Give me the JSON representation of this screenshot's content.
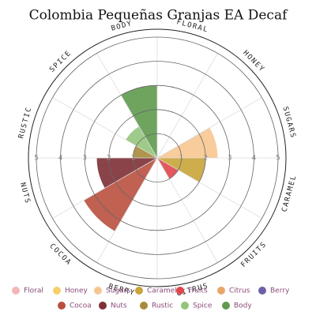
{
  "chart_data": {
    "type": "polar-area",
    "title": "Colombia Pequeñas Granjas EA Decaf",
    "categories": [
      "Floral",
      "Honey",
      "Sugars",
      "Caramel",
      "Fruits",
      "Citrus",
      "Berry",
      "Cocoa",
      "Nuts",
      "Rustic",
      "Spice",
      "Body"
    ],
    "values": [
      0,
      0,
      2.5,
      2,
      1,
      0,
      0,
      3.5,
      2.5,
      1,
      1.5,
      3
    ],
    "colors": [
      "#f4b6b6",
      "#f5d06b",
      "#f7c690",
      "#c9a43a",
      "#e0474c",
      "#e9a66b",
      "#6f5fa8",
      "#b9503f",
      "#7d3035",
      "#a88a3c",
      "#93c47d",
      "#5f9a4d"
    ],
    "rlim": [
      0,
      5
    ],
    "rticks": [
      1,
      2,
      3,
      4,
      5
    ],
    "grid": true,
    "legend": "bottom"
  }
}
